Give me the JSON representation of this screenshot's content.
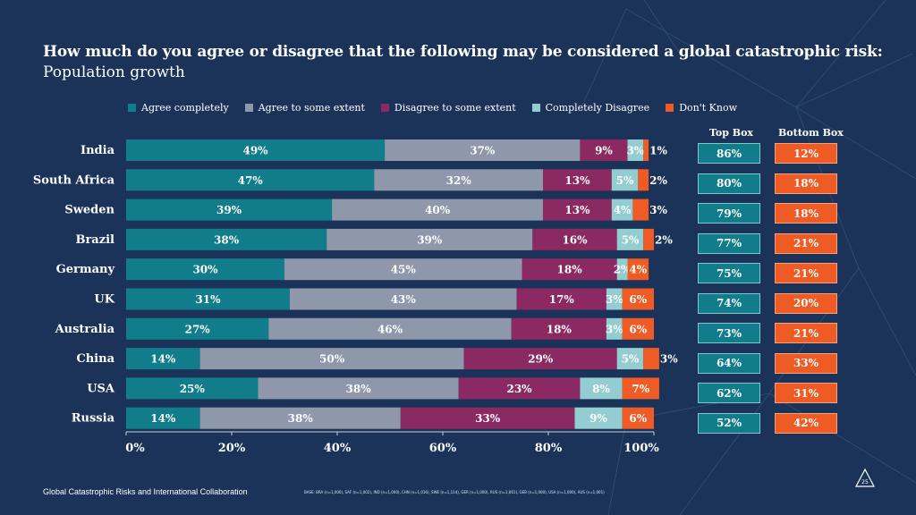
{
  "title": "How much do you agree or disagree that the following may be considered a global catastrophic risk:",
  "subtitle": "Population growth",
  "footer": {
    "left": "Global Catastrophic Risks and International Collaboration",
    "base": "BASE: BRA (n=1,000), SAF (n=1,002), IND (n=1,000), CHN (n=1,016), SWE (n=1,114), GER (n=1,000), RUS (n=1,061), GEB (n=1,000), USA (n=1,000), AUS (n=1,001)",
    "page": "25"
  },
  "headers": {
    "top_box": "Top Box",
    "bottom_box": "Bottom Box"
  },
  "colors": {
    "background": "#1b3358",
    "agree_completely": "#117c8a",
    "agree_some": "#8e98aa",
    "disagree_some": "#8b2a62",
    "completely_disagree": "#93cdd1",
    "dont_know": "#ef5b24"
  },
  "chart_data": {
    "type": "bar",
    "orientation": "horizontal",
    "stacked": true,
    "title": "How much do you agree or disagree that the following may be considered a global catastrophic risk:",
    "subtitle": "Population growth",
    "categories": [
      "India",
      "South Africa",
      "Sweden",
      "Brazil",
      "Germany",
      "UK",
      "Australia",
      "China",
      "USA",
      "Russia"
    ],
    "series": [
      {
        "name": "Agree completely",
        "values": [
          49,
          47,
          39,
          38,
          30,
          31,
          27,
          14,
          25,
          14
        ]
      },
      {
        "name": "Agree to some extent",
        "values": [
          37,
          32,
          40,
          39,
          45,
          43,
          46,
          50,
          38,
          38
        ]
      },
      {
        "name": "Disagree to some extent",
        "values": [
          9,
          13,
          13,
          16,
          18,
          17,
          18,
          29,
          23,
          33
        ]
      },
      {
        "name": "Completely Disagree",
        "values": [
          3,
          5,
          4,
          5,
          2,
          3,
          3,
          5,
          8,
          9
        ]
      },
      {
        "name": "Don't Know",
        "values": [
          1,
          2,
          3,
          2,
          4,
          6,
          6,
          3,
          7,
          6
        ]
      }
    ],
    "top_box": [
      86,
      80,
      79,
      77,
      75,
      74,
      73,
      64,
      62,
      52
    ],
    "bottom_box": [
      12,
      18,
      18,
      21,
      21,
      20,
      21,
      33,
      31,
      42
    ],
    "xlim": [
      0,
      100
    ],
    "xticks": [
      "0%",
      "20%",
      "40%",
      "60%",
      "80%",
      "100%"
    ],
    "legend": "top",
    "grid": false
  }
}
